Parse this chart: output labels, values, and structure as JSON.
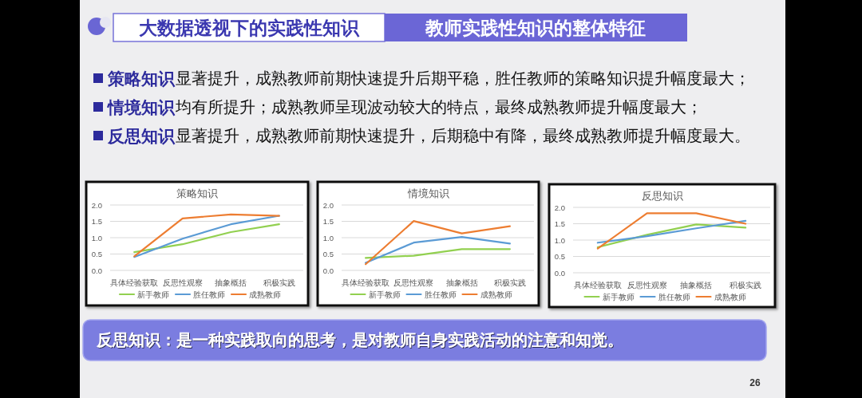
{
  "chart_data": [
    {
      "type": "other",
      "title": "大数据透视下的实践性知识",
      "subtitle": "教师实践性知识的整体特征",
      "annotations": [
        "策略知识",
        "显著提升，成熟教师前期快速提升后期平稳，胜任教师的策略知识提升幅度最大；",
        "情境知识",
        "均有所提升；成熟教师呈现波动较大的特点，最终成熟教师提升幅度最大；",
        "反思知识",
        "显著提升，成熟教师前期快速提升，后期稳中有降，最终成熟教师提升幅度最大。"
      ]
    },
    {
      "type": "line",
      "title": "策略知识",
      "categories": [
        "具体经验获取",
        "反思性观察",
        "抽象概括",
        "积极实践"
      ],
      "series": [
        {
          "name": "新手教师",
          "color": "#92d050",
          "values": [
            0.56,
            0.8,
            1.17,
            1.41
          ]
        },
        {
          "name": "胜任教师",
          "color": "#5b9bd5",
          "values": [
            0.41,
            0.97,
            1.41,
            1.67
          ]
        },
        {
          "name": "成熟教师",
          "color": "#ed7d31",
          "values": [
            0.43,
            1.59,
            1.71,
            1.67
          ]
        }
      ],
      "ylim": [
        0,
        2
      ],
      "yticks": [
        {
          "value": 0,
          "label": "0.0"
        },
        {
          "value": 0.5,
          "label": "0.5"
        },
        {
          "value": 1,
          "label": "1.0"
        },
        {
          "value": 1.5,
          "label": "1.5"
        },
        {
          "value": 2,
          "label": "2.0"
        }
      ],
      "grid": "y",
      "legend": "bottom"
    },
    {
      "type": "line",
      "title": "情境知识",
      "categories": [
        "具体经验获取",
        "反思性观察",
        "抽象概括",
        "积极实践"
      ],
      "series": [
        {
          "name": "新手教师",
          "color": "#92d050",
          "values": [
            0.38,
            0.45,
            0.65,
            0.65
          ]
        },
        {
          "name": "胜任教师",
          "color": "#5b9bd5",
          "values": [
            0.23,
            0.85,
            1.02,
            0.82
          ]
        },
        {
          "name": "成熟教师",
          "color": "#ed7d31",
          "values": [
            0.19,
            1.51,
            1.13,
            1.35
          ]
        }
      ],
      "ylim": [
        0,
        2
      ],
      "yticks": [
        {
          "value": 0,
          "label": "0.0"
        },
        {
          "value": 0.5,
          "label": "0.5"
        },
        {
          "value": 1,
          "label": "1.0"
        },
        {
          "value": 1.5,
          "label": "1.5"
        },
        {
          "value": 2,
          "label": "2.0"
        }
      ],
      "grid": "y",
      "legend": "bottom"
    },
    {
      "type": "line",
      "title": "反思知识",
      "categories": [
        "具体经验获取",
        "反思性观察",
        "抽象概括",
        "积极实践"
      ],
      "series": [
        {
          "name": "新手教师",
          "color": "#92d050",
          "values": [
            0.78,
            1.16,
            1.48,
            1.38
          ]
        },
        {
          "name": "胜任教师",
          "color": "#5b9bd5",
          "values": [
            0.92,
            1.12,
            1.36,
            1.59
          ]
        },
        {
          "name": "成熟教师",
          "color": "#ed7d31",
          "values": [
            0.74,
            1.82,
            1.82,
            1.5
          ]
        }
      ],
      "ylim": [
        0,
        2
      ],
      "yticks": [
        {
          "value": 0,
          "label": "0.0"
        },
        {
          "value": 0.5,
          "label": "0.5"
        },
        {
          "value": 1,
          "label": "1.0"
        },
        {
          "value": 1.5,
          "label": "1.5"
        },
        {
          "value": 2,
          "label": "2.0"
        }
      ],
      "grid": "y",
      "legend": "bottom"
    },
    {
      "type": "other",
      "annotations": [
        "反思知识：是一种实践取向的思考，是对教师自身实践活动的注意和知觉。",
        "26"
      ]
    }
  ]
}
